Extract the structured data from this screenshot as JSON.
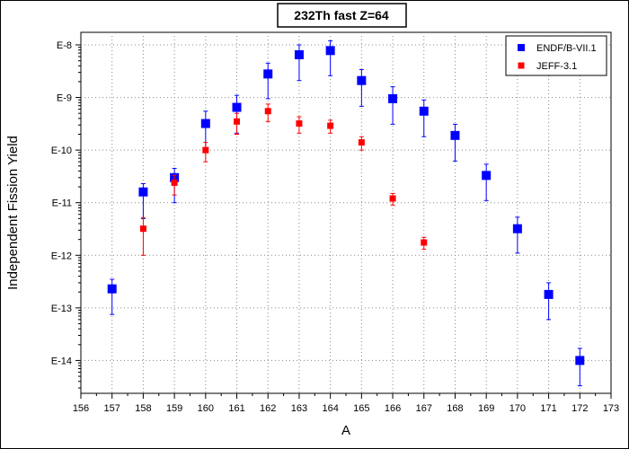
{
  "chart_data": {
    "type": "scatter",
    "title": "232Th fast Z=64",
    "xlabel": "A",
    "ylabel": "Independent Fission Yield",
    "xlim": [
      156,
      173
    ],
    "ylim": [
      1e-15,
      1e-08
    ],
    "yscale": "log",
    "x_ticks": [
      156,
      157,
      158,
      159,
      160,
      161,
      162,
      163,
      164,
      165,
      166,
      167,
      168,
      169,
      170,
      171,
      172,
      173
    ],
    "y_ticks": [
      {
        "value": 1e-08,
        "label": "E-8"
      },
      {
        "value": 1e-09,
        "label": "E-9"
      },
      {
        "value": 1e-10,
        "label": "E-10"
      },
      {
        "value": 1e-11,
        "label": "E-11"
      },
      {
        "value": 1e-12,
        "label": "E-12"
      },
      {
        "value": 1e-13,
        "label": "E-13"
      },
      {
        "value": 1e-14,
        "label": "E-14"
      }
    ],
    "grid": true,
    "legend_position": "top-right",
    "series": [
      {
        "name": "ENDF/B-VII.1",
        "color": "#0000ff",
        "marker": "square-large",
        "points": [
          {
            "x": 157,
            "y": 2.3e-13,
            "lo": 7.5e-14,
            "hi": 3.5e-13
          },
          {
            "x": 158,
            "y": 1.6e-11,
            "lo": 5e-12,
            "hi": 2.3e-11
          },
          {
            "x": 159,
            "y": 3e-11,
            "lo": 1e-11,
            "hi": 4.5e-11
          },
          {
            "x": 160,
            "y": 3.2e-10,
            "lo": 1e-10,
            "hi": 5.5e-10
          },
          {
            "x": 161,
            "y": 6.5e-10,
            "lo": 2.1e-10,
            "hi": 1.1e-09
          },
          {
            "x": 162,
            "y": 2.8e-09,
            "lo": 9.5e-10,
            "hi": 4.5e-09
          },
          {
            "x": 163,
            "y": 6.5e-09,
            "lo": 2.1e-09,
            "hi": 1e-08
          },
          {
            "x": 164,
            "y": 7.8e-09,
            "lo": 2.6e-09,
            "hi": 1.2e-08
          },
          {
            "x": 165,
            "y": 2.1e-09,
            "lo": 6.8e-10,
            "hi": 3.4e-09
          },
          {
            "x": 166,
            "y": 9.5e-10,
            "lo": 3.1e-10,
            "hi": 1.6e-09
          },
          {
            "x": 167,
            "y": 5.5e-10,
            "lo": 1.8e-10,
            "hi": 9e-10
          },
          {
            "x": 168,
            "y": 1.9e-10,
            "lo": 6.2e-11,
            "hi": 3.1e-10
          },
          {
            "x": 169,
            "y": 3.3e-11,
            "lo": 1.1e-11,
            "hi": 5.4e-11
          },
          {
            "x": 170,
            "y": 3.2e-12,
            "lo": 1.1e-12,
            "hi": 5.3e-12
          },
          {
            "x": 171,
            "y": 1.8e-13,
            "lo": 6e-14,
            "hi": 3e-13
          },
          {
            "x": 172,
            "y": 1e-14,
            "lo": 3.3e-15,
            "hi": 1.7e-14
          }
        ]
      },
      {
        "name": "JEFF-3.1",
        "color": "#ff0000",
        "marker": "square-small",
        "points": [
          {
            "x": 158,
            "y": 3.2e-12,
            "lo": 1e-12,
            "hi": 5.2e-12
          },
          {
            "x": 159,
            "y": 2.4e-11,
            "lo": 1.4e-11,
            "hi": 3.3e-11
          },
          {
            "x": 160,
            "y": 1e-10,
            "lo": 6e-11,
            "hi": 1.4e-10
          },
          {
            "x": 161,
            "y": 3.5e-10,
            "lo": 2e-10,
            "hi": 5e-10
          },
          {
            "x": 162,
            "y": 5.5e-10,
            "lo": 3.5e-10,
            "hi": 7.5e-10
          },
          {
            "x": 163,
            "y": 3.2e-10,
            "lo": 2.1e-10,
            "hi": 4.3e-10
          },
          {
            "x": 164,
            "y": 2.9e-10,
            "lo": 2.1e-10,
            "hi": 3.7e-10
          },
          {
            "x": 165,
            "y": 1.4e-10,
            "lo": 1e-10,
            "hi": 1.8e-10
          },
          {
            "x": 166,
            "y": 1.2e-11,
            "lo": 9e-12,
            "hi": 1.5e-11
          },
          {
            "x": 167,
            "y": 1.75e-12,
            "lo": 1.3e-12,
            "hi": 2.2e-12
          }
        ]
      }
    ]
  }
}
